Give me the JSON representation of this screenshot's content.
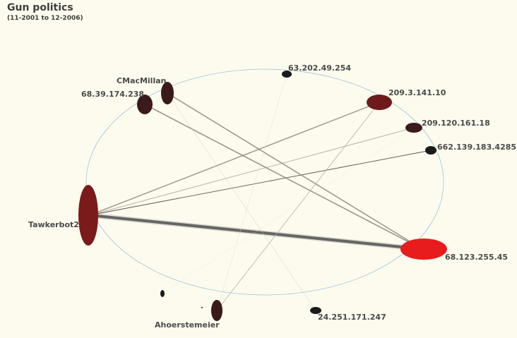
{
  "header": {
    "title": "Gun politics",
    "subtitle": "(11-2001 to 12-2006)"
  },
  "colors": {
    "background": "#fdfbee",
    "ring": "#9fc4d8",
    "node_dark": "#3a1a1a",
    "node_medium": "#7a1a1a",
    "node_hot": "#e81c1c",
    "node_black": "#1a1a1a"
  },
  "nodes": [
    {
      "id": "63.202.49.254",
      "label": "63.202.49.254"
    },
    {
      "id": "CMacMillan",
      "label": "CMacMillan"
    },
    {
      "id": "68.39.174.238",
      "label": "68.39.174.238"
    },
    {
      "id": "209.3.141.10",
      "label": "209.3.141.10"
    },
    {
      "id": "209.120.161.18",
      "label": "209.120.161.18"
    },
    {
      "id": "overlap",
      "label": "662.139.183.4285"
    },
    {
      "id": "Tawkerbot2",
      "label": "Tawkerbot2"
    },
    {
      "id": "68.123.255.45",
      "label": "68.123.255.45"
    },
    {
      "id": "unlabeled-1",
      "label": ""
    },
    {
      "id": "Ahoerstemeier",
      "label": "Ahoerstemeier"
    },
    {
      "id": "24.251.171.247",
      "label": "24.251.171.247"
    }
  ]
}
